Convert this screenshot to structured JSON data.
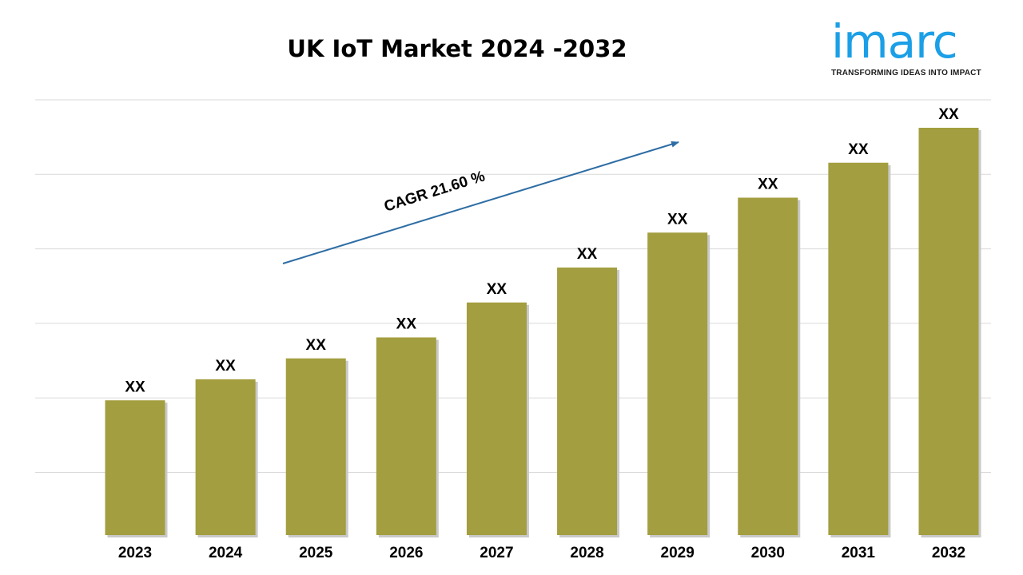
{
  "header": {
    "title": "UK IoT Market 2024 -2032"
  },
  "logo": {
    "wordmark": "imarc",
    "tagline": "TRANSFORMING IDEAS INTO IMPACT",
    "color": "#1b9fe6"
  },
  "chart_data": {
    "type": "bar",
    "title": "UK IoT Market 2024 -2032",
    "categories": [
      "2023",
      "2024",
      "2025",
      "2026",
      "2027",
      "2028",
      "2029",
      "2030",
      "2031",
      "2032"
    ],
    "values": [
      2.1,
      2.4,
      2.7,
      3.0,
      3.5,
      4.0,
      4.5,
      5.0,
      5.5,
      6.0
    ],
    "data_labels": [
      "XX",
      "XX",
      "XX",
      "XX",
      "XX",
      "XX",
      "XX",
      "XX",
      "XX",
      "XX"
    ],
    "ylim": [
      0,
      6.4
    ],
    "grid": true,
    "bar_color": "#a39e3f",
    "annotation": {
      "text": "CAGR 21.60 %",
      "arrow_color": "#2e6da4"
    }
  }
}
